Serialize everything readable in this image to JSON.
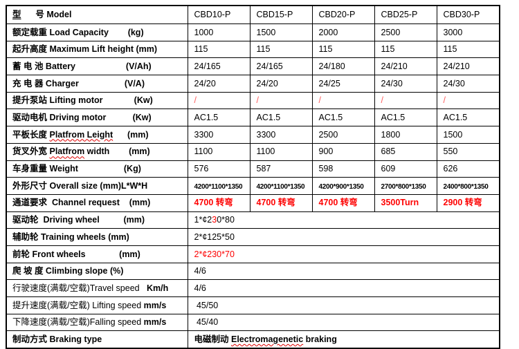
{
  "colors": {
    "background": "#ffffff",
    "border": "#000000",
    "text": "#000000",
    "accent_red": "#fe0000",
    "soft_red": "#ff5b5b",
    "spellcheck_wavy": "#e00000"
  },
  "table": {
    "models": [
      "CBD10-P",
      "CBD15-P",
      "CBD20-P",
      "CBD25-P",
      "CBD30-P"
    ],
    "rows": [
      {
        "name": "model",
        "header": true,
        "label": [
          {
            "t": "型",
            "b": true,
            "u": true
          },
          {
            "t": "      号 Model",
            "b": true
          }
        ],
        "cells": [
          "CBD10-P",
          "CBD15-P",
          "CBD20-P",
          "CBD25-P",
          "CBD30-P"
        ]
      },
      {
        "name": "load-capacity",
        "label": [
          {
            "t": "额定载重 Load Capacity        (kg)",
            "b": true
          }
        ],
        "cells": [
          "1000",
          "1500",
          "2000",
          "2500",
          "3000"
        ]
      },
      {
        "name": "lift-height",
        "label": [
          {
            "t": "起升高度 Maximum Lift height (mm)",
            "b": true
          }
        ],
        "cells": [
          "115",
          "115",
          "115",
          "115",
          "115"
        ]
      },
      {
        "name": "battery",
        "label": [
          {
            "t": "蓄 电 池 Battery                     (V/Ah)",
            "b": true
          }
        ],
        "cells": [
          "24/165",
          "24/165",
          "24/180",
          "24/210",
          "24/210"
        ]
      },
      {
        "name": "charger",
        "label": [
          {
            "t": "充 电 器 Charger                   (V/A)",
            "b": true
          }
        ],
        "cells": [
          "24/20",
          "24/20",
          "24/25",
          "24/30",
          "24/30"
        ]
      },
      {
        "name": "lifting-motor",
        "label": [
          {
            "t": "提升泵站 Lifting motor             (Kw)",
            "b": true
          }
        ],
        "cells": [
          [
            {
              "t": "/",
              "c": "soft"
            }
          ],
          [
            {
              "t": "/",
              "c": "soft"
            }
          ],
          [
            {
              "t": "/",
              "c": "soft"
            }
          ],
          [
            {
              "t": "/",
              "c": "soft"
            }
          ],
          [
            {
              "t": "/",
              "c": "soft"
            }
          ]
        ]
      },
      {
        "name": "driving-motor",
        "label": [
          {
            "t": "驱动电机 Driving motor           (Kw)",
            "b": true
          }
        ],
        "cells": [
          "AC1.5",
          "AC1.5",
          "AC1.5",
          "AC1.5",
          "AC1.5"
        ]
      },
      {
        "name": "platform-length",
        "label": [
          {
            "t": "平板长度 ",
            "b": true
          },
          {
            "t": "Platfrom Leight",
            "b": true,
            "w": true
          },
          {
            "t": "      (mm)",
            "b": true
          }
        ],
        "cells": [
          "3300",
          "3300",
          "2500",
          "1800",
          "1500"
        ]
      },
      {
        "name": "platform-width",
        "label": [
          {
            "t": "货叉外宽 ",
            "b": true
          },
          {
            "t": "Platfrom",
            "b": true,
            "w": true
          },
          {
            "t": " width        (mm)",
            "b": true
          }
        ],
        "cells": [
          "1100",
          "1100",
          "900",
          "685",
          "550"
        ]
      },
      {
        "name": "weight",
        "label": [
          {
            "t": "车身重量 Weight                   (Kg)",
            "b": true
          }
        ],
        "cells": [
          "576",
          "587",
          "598",
          "609",
          "626"
        ]
      },
      {
        "name": "overall-size",
        "label": [
          {
            "t": "外形尺寸 Overall size (mm)L*W*H",
            "b": true
          }
        ],
        "cells": [
          [
            {
              "t": "4200*1100*1350",
              "s": true
            }
          ],
          [
            {
              "t": "4200*1100*1350",
              "s": true
            }
          ],
          [
            {
              "t": "4200*900*1350",
              "s": true
            }
          ],
          [
            {
              "t": "2700*800*1350",
              "s": true
            }
          ],
          [
            {
              "t": "2400*800*1350",
              "s": true
            }
          ]
        ]
      },
      {
        "name": "channel-request",
        "label": [
          {
            "t": "通道要求  Channel request    (mm)",
            "b": true
          }
        ],
        "cells": [
          [
            {
              "t": "4700 转弯",
              "b": true,
              "c": "red"
            }
          ],
          [
            {
              "t": "4700 转弯",
              "b": true,
              "c": "red"
            }
          ],
          [
            {
              "t": "4700 转弯",
              "b": true,
              "c": "red"
            }
          ],
          [
            {
              "t": "3500Turn",
              "b": true,
              "c": "red"
            }
          ],
          [
            {
              "t": "2900 转弯",
              "b": true,
              "c": "red"
            }
          ]
        ]
      },
      {
        "name": "driving-wheel",
        "merged": true,
        "label": [
          {
            "t": "驱动轮  Driving wheel          (mm)",
            "b": true
          }
        ],
        "cells": [
          [
            {
              "t": "1*¢2"
            },
            {
              "t": "3",
              "c": "red"
            },
            {
              "t": "0*80"
            }
          ]
        ]
      },
      {
        "name": "training-wheels",
        "merged": true,
        "label": [
          {
            "t": "辅助轮 Training wheels (mm)",
            "b": true
          }
        ],
        "cells": [
          [
            "2*¢125*50"
          ]
        ]
      },
      {
        "name": "front-wheels",
        "merged": true,
        "label": [
          {
            "t": "前轮 Front wheels              (mm)",
            "b": true
          }
        ],
        "cells": [
          [
            {
              "t": "2*¢230*70",
              "c": "red"
            }
          ]
        ]
      },
      {
        "name": "climbing-slope",
        "merged": true,
        "label": [
          {
            "t": "爬 坡 度 Climbing slope (%)",
            "b": true
          }
        ],
        "cells": [
          [
            "4/6"
          ]
        ]
      },
      {
        "name": "travel-speed",
        "merged": true,
        "label": [
          {
            "t": "行驶速度(满载/空载)Travel speed   "
          },
          {
            "t": "Km/h",
            "b": true
          }
        ],
        "cells": [
          [
            "4/6"
          ]
        ]
      },
      {
        "name": "lifting-speed",
        "merged": true,
        "label": [
          {
            "t": "提升速度(满载/空载) Lifting speed "
          },
          {
            "t": "mm/s",
            "b": true
          }
        ],
        "cells": [
          [
            " 45/50"
          ]
        ]
      },
      {
        "name": "falling-speed",
        "merged": true,
        "label": [
          {
            "t": "下降速度(满载/空载)Falling speed "
          },
          {
            "t": "mm/s",
            "b": true
          }
        ],
        "cells": [
          [
            " 45/40"
          ]
        ]
      },
      {
        "name": "braking-type",
        "merged": true,
        "label": [
          {
            "t": "制动方式 Braking type",
            "b": true
          }
        ],
        "cells": [
          [
            {
              "t": "电磁制动 ",
              "b": true
            },
            {
              "t": "Electromagenetic",
              "b": true,
              "w": true
            },
            {
              "t": " braking",
              "b": true
            }
          ]
        ]
      }
    ]
  }
}
